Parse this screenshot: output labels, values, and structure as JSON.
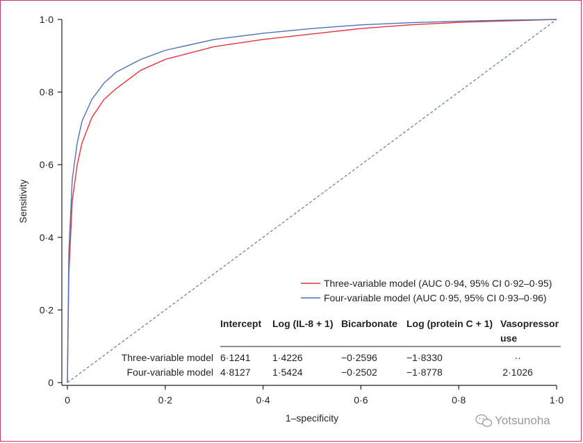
{
  "chart_data": {
    "type": "line",
    "xlabel": "1–specificity",
    "ylabel": "Sensitivity",
    "xlim": [
      0,
      1
    ],
    "ylim": [
      0,
      1
    ],
    "xticks": [
      "0",
      "0·2",
      "0·4",
      "0·6",
      "0·8",
      "1·0"
    ],
    "yticks": [
      "0",
      "0·2",
      "0·4",
      "0·6",
      "0·8",
      "1·0"
    ],
    "legend_position": "lower-right",
    "grid": false,
    "reference_line": {
      "style": "dashed",
      "color": "#4a7a73",
      "x": [
        0,
        1
      ],
      "y": [
        0,
        1
      ]
    },
    "series": [
      {
        "name": "Three-variable model (AUC 0·94, 95% CI 0·92–0·95)",
        "color": "#e8313a",
        "x": [
          0,
          0.003,
          0.01,
          0.02,
          0.03,
          0.05,
          0.075,
          0.1,
          0.15,
          0.2,
          0.3,
          0.4,
          0.5,
          0.6,
          0.7,
          0.8,
          0.9,
          1.0
        ],
        "y": [
          0,
          0.3,
          0.5,
          0.6,
          0.66,
          0.73,
          0.78,
          0.81,
          0.86,
          0.89,
          0.925,
          0.945,
          0.96,
          0.975,
          0.985,
          0.992,
          0.996,
          1.0
        ]
      },
      {
        "name": "Four-variable model (AUC 0·95, 95% CI 0·93–0·96)",
        "color": "#4f70b6",
        "x": [
          0,
          0.003,
          0.01,
          0.02,
          0.03,
          0.05,
          0.075,
          0.1,
          0.15,
          0.2,
          0.3,
          0.4,
          0.5,
          0.6,
          0.7,
          0.8,
          0.9,
          1.0
        ],
        "y": [
          0,
          0.36,
          0.56,
          0.66,
          0.72,
          0.78,
          0.825,
          0.855,
          0.89,
          0.915,
          0.945,
          0.962,
          0.975,
          0.985,
          0.991,
          0.995,
          0.998,
          1.0
        ]
      }
    ],
    "table": {
      "columns": [
        "Intercept",
        "Log (IL-8 + 1)",
        "Bicarbonate",
        "Log (protein C + 1)",
        "Vasopressor use"
      ],
      "rows": [
        {
          "label": "Three-variable model",
          "values": [
            "6·1241",
            "1·4226",
            "−0·2596",
            "−1·8330",
            "··"
          ]
        },
        {
          "label": "Four-variable model",
          "values": [
            "4·8127",
            "1·5424",
            "−0·2502",
            "−1·8778",
            "2·1026"
          ]
        }
      ]
    }
  },
  "watermark": {
    "text": "Yotsunoha",
    "icon": "wechat-icon"
  }
}
